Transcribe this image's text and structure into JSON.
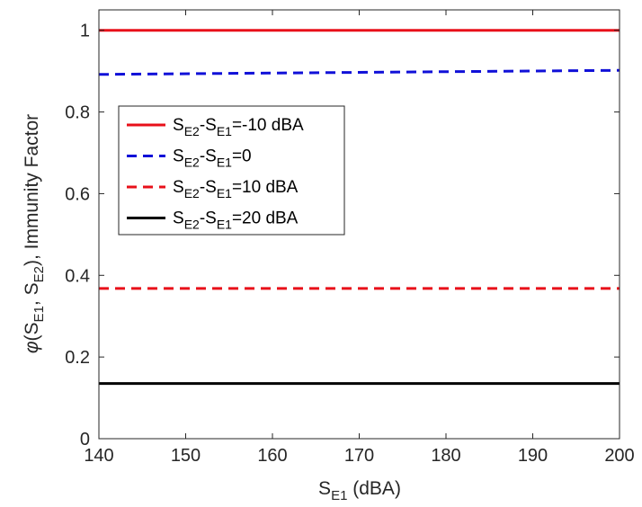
{
  "chart_data": {
    "type": "line",
    "x": [
      140,
      200
    ],
    "xlim": [
      140,
      200
    ],
    "ylim": [
      0,
      1.05
    ],
    "xticks": [
      140,
      150,
      160,
      170,
      180,
      190,
      200
    ],
    "yticks": [
      0,
      0.2,
      0.4,
      0.6,
      0.8,
      1
    ],
    "xlabel": {
      "main": "S",
      "sub": "E1",
      "tail": " (dBA)"
    },
    "ylabel": {
      "phi": "φ",
      "p1": "(S",
      "sub1": "E1",
      "p2": ", S",
      "sub2": "E2",
      "p3": "), Immunity Factor"
    },
    "legend_position": "upper-left",
    "series": [
      {
        "name": {
          "a": "S",
          "b": "E2",
          "c": "-S",
          "d": "E1",
          "e": "=-10 dBA"
        },
        "y": [
          1.0,
          1.0
        ],
        "color": "#e8101a",
        "dash": "solid"
      },
      {
        "name": {
          "a": "S",
          "b": "E2",
          "c": "-S",
          "d": "E1",
          "e": "=0"
        },
        "y": [
          0.892,
          0.902
        ],
        "color": "#1010d8",
        "dash": "dashed"
      },
      {
        "name": {
          "a": "S",
          "b": "E2",
          "c": "-S",
          "d": "E1",
          "e": "=10 dBA"
        },
        "y": [
          0.368,
          0.368
        ],
        "color": "#e8101a",
        "dash": "dashed"
      },
      {
        "name": {
          "a": "S",
          "b": "E2",
          "c": "-S",
          "d": "E1",
          "e": "=20 dBA"
        },
        "y": [
          0.135,
          0.135
        ],
        "color": "#000000",
        "dash": "solid"
      }
    ]
  }
}
